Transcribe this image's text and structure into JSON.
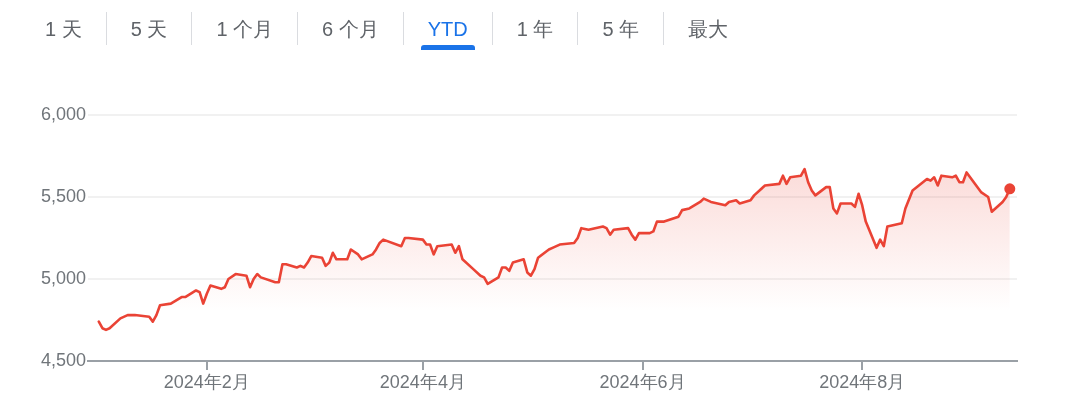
{
  "chart_data": [
    {
      "type": "other",
      "categories": [
        "1 天",
        "5 天",
        "1 个月",
        "6 个月",
        "YTD",
        "1 年",
        "5 年",
        "最大"
      ],
      "colors": [
        "#5f6368",
        "#5f6368",
        "#5f6368",
        "#5f6368",
        "#1a73e8",
        "#5f6368",
        "#5f6368",
        "#5f6368"
      ]
    },
    {
      "type": "area",
      "x": [
        "2024-01-02",
        "2024-01-03",
        "2024-01-04",
        "2024-01-05",
        "2024-01-08",
        "2024-01-10",
        "2024-01-12",
        "2024-01-16",
        "2024-01-17",
        "2024-01-18",
        "2024-01-19",
        "2024-01-22",
        "2024-01-25",
        "2024-01-26",
        "2024-01-29",
        "2024-01-30",
        "2024-01-31",
        "2024-02-01",
        "2024-02-02",
        "2024-02-05",
        "2024-02-06",
        "2024-02-07",
        "2024-02-09",
        "2024-02-12",
        "2024-02-13",
        "2024-02-14",
        "2024-02-15",
        "2024-02-16",
        "2024-02-20",
        "2024-02-21",
        "2024-02-22",
        "2024-02-23",
        "2024-02-26",
        "2024-02-27",
        "2024-02-28",
        "2024-02-29",
        "2024-03-01",
        "2024-03-04",
        "2024-03-05",
        "2024-03-06",
        "2024-03-07",
        "2024-03-08",
        "2024-03-11",
        "2024-03-12",
        "2024-03-14",
        "2024-03-15",
        "2024-03-18",
        "2024-03-19",
        "2024-03-20",
        "2024-03-21",
        "2024-03-26",
        "2024-03-27",
        "2024-03-28",
        "2024-04-01",
        "2024-04-02",
        "2024-04-03",
        "2024-04-04",
        "2024-04-05",
        "2024-04-09",
        "2024-04-10",
        "2024-04-11",
        "2024-04-12",
        "2024-04-15",
        "2024-04-17",
        "2024-04-18",
        "2024-04-19",
        "2024-04-22",
        "2024-04-23",
        "2024-04-24",
        "2024-04-25",
        "2024-04-26",
        "2024-04-29",
        "2024-04-30",
        "2024-05-01",
        "2024-05-02",
        "2024-05-03",
        "2024-05-06",
        "2024-05-07",
        "2024-05-09",
        "2024-05-13",
        "2024-05-14",
        "2024-05-15",
        "2024-05-17",
        "2024-05-21",
        "2024-05-22",
        "2024-05-23",
        "2024-05-24",
        "2024-05-28",
        "2024-05-29",
        "2024-05-30",
        "2024-05-31",
        "2024-06-03",
        "2024-06-04",
        "2024-06-05",
        "2024-06-07",
        "2024-06-11",
        "2024-06-12",
        "2024-06-14",
        "2024-06-17",
        "2024-06-18",
        "2024-06-20",
        "2024-06-24",
        "2024-06-25",
        "2024-06-27",
        "2024-06-28",
        "2024-07-01",
        "2024-07-02",
        "2024-07-05",
        "2024-07-09",
        "2024-07-10",
        "2024-07-11",
        "2024-07-12",
        "2024-07-15",
        "2024-07-16",
        "2024-07-17",
        "2024-07-18",
        "2024-07-19",
        "2024-07-22",
        "2024-07-23",
        "2024-07-24",
        "2024-07-25",
        "2024-07-26",
        "2024-07-29",
        "2024-07-30",
        "2024-07-31",
        "2024-08-01",
        "2024-08-02",
        "2024-08-05",
        "2024-08-06",
        "2024-08-07",
        "2024-08-08",
        "2024-08-12",
        "2024-08-13",
        "2024-08-15",
        "2024-08-19",
        "2024-08-20",
        "2024-08-21",
        "2024-08-22",
        "2024-08-23",
        "2024-08-26",
        "2024-08-27",
        "2024-08-28",
        "2024-08-29",
        "2024-08-30",
        "2024-09-03",
        "2024-09-05",
        "2024-09-06",
        "2024-09-09",
        "2024-09-10",
        "2024-09-11"
      ],
      "series": [
        {
          "color": "#ea4335",
          "values": [
            4740,
            4700,
            4690,
            4700,
            4760,
            4780,
            4780,
            4770,
            4740,
            4780,
            4840,
            4850,
            4890,
            4890,
            4930,
            4920,
            4850,
            4910,
            4960,
            4940,
            4950,
            5000,
            5030,
            5020,
            4950,
            5000,
            5030,
            5010,
            4980,
            4980,
            5090,
            5090,
            5070,
            5080,
            5070,
            5100,
            5140,
            5130,
            5080,
            5100,
            5160,
            5120,
            5120,
            5180,
            5150,
            5120,
            5150,
            5180,
            5220,
            5240,
            5200,
            5250,
            5250,
            5240,
            5210,
            5210,
            5150,
            5200,
            5210,
            5160,
            5200,
            5120,
            5060,
            5020,
            5010,
            4970,
            5010,
            5070,
            5070,
            5050,
            5100,
            5120,
            5040,
            5020,
            5060,
            5130,
            5180,
            5190,
            5210,
            5220,
            5250,
            5310,
            5300,
            5320,
            5310,
            5270,
            5300,
            5310,
            5270,
            5240,
            5280,
            5280,
            5290,
            5350,
            5350,
            5380,
            5420,
            5430,
            5470,
            5490,
            5470,
            5450,
            5470,
            5480,
            5460,
            5480,
            5510,
            5570,
            5580,
            5630,
            5580,
            5620,
            5630,
            5670,
            5590,
            5540,
            5510,
            5560,
            5560,
            5430,
            5400,
            5460,
            5460,
            5440,
            5520,
            5450,
            5350,
            5190,
            5240,
            5200,
            5320,
            5340,
            5430,
            5540,
            5610,
            5600,
            5620,
            5570,
            5630,
            5620,
            5630,
            5590,
            5590,
            5650,
            5530,
            5500,
            5410,
            5470,
            5500,
            5550
          ]
        },
        {
          "type": "scatter",
          "x": [
            "2024-09-11"
          ],
          "values": [
            5550
          ],
          "color": "#ea4335",
          "marker": "circle"
        }
      ],
      "xlim": [
        "2023-12-30",
        "2024-09-13"
      ],
      "xticks": [
        {
          "value": "2024-02-01",
          "label": "2024年2月"
        },
        {
          "value": "2024-04-01",
          "label": "2024年4月"
        },
        {
          "value": "2024-06-01",
          "label": "2024年6月"
        },
        {
          "value": "2024-08-01",
          "label": "2024年8月"
        }
      ],
      "ylim": [
        4500,
        6000
      ],
      "yticks": [
        {
          "value": 4500,
          "label": "4,500"
        },
        {
          "value": 5000,
          "label": "5,000"
        },
        {
          "value": 5500,
          "label": "5,500"
        },
        {
          "value": 6000,
          "label": "6,000"
        }
      ],
      "grid": "y"
    }
  ]
}
